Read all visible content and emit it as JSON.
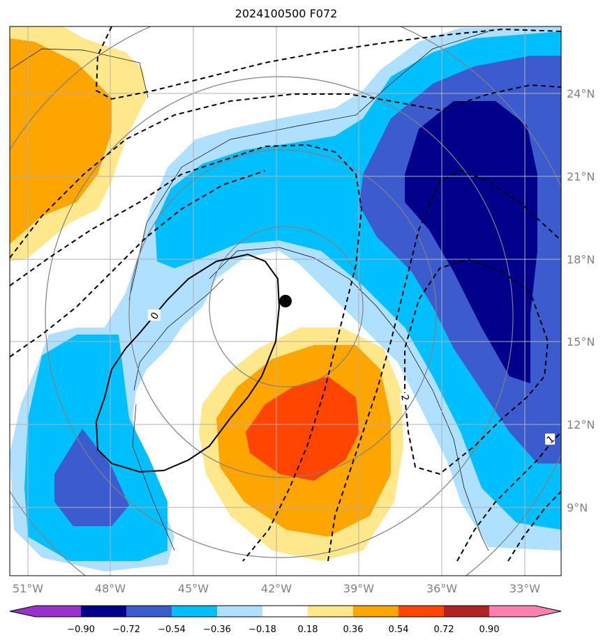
{
  "title": "2024100500 F072",
  "colors": {
    "neg_090": "#9932cc",
    "neg_072": "#00008b",
    "neg_054": "#3b5bcf",
    "neg_036": "#00bfff",
    "neg_018": "#b0e0ff",
    "zero": "#ffffff",
    "pos_018": "#ffe88c",
    "pos_036": "#ffa500",
    "pos_054": "#ff4500",
    "pos_072": "#b22222",
    "pos_090": "#ff80b0",
    "grid": "#b0b0b0",
    "gray_contour": "#808080"
  },
  "axes": {
    "x_ticks": [
      "51°W",
      "48°W",
      "45°W",
      "42°W",
      "39°W",
      "36°W",
      "33°W"
    ],
    "y_ticks": [
      "24°N",
      "21°N",
      "18°N",
      "15°N",
      "12°N",
      "9°N"
    ]
  },
  "colorbar": {
    "labels": [
      "−0.90",
      "−0.72",
      "−0.54",
      "−0.36",
      "−0.18",
      "0.18",
      "0.36",
      "0.54",
      "0.72",
      "0.90"
    ]
  },
  "contour_labels": {
    "solid": "0",
    "dashed_a": "2",
    "dashed_b": "1"
  },
  "marker": {
    "name": "storm-center",
    "lon": -41.7,
    "lat": 16.5
  }
}
